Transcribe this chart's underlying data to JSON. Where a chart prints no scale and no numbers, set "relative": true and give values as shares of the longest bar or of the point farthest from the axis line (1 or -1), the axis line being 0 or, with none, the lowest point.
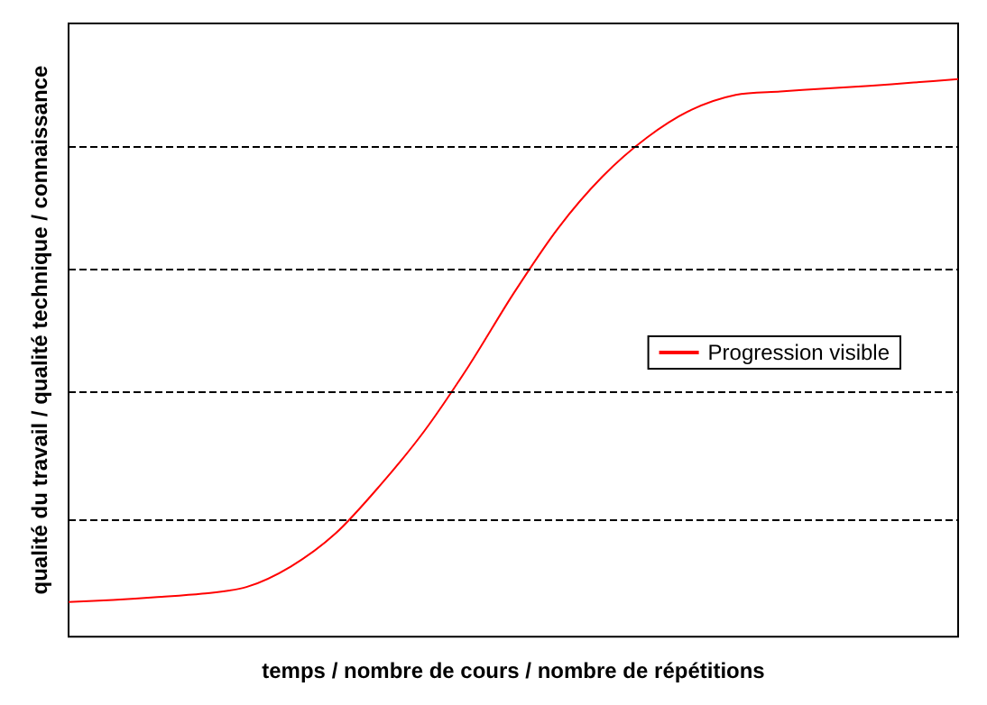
{
  "chart_data": {
    "type": "line",
    "relative": true,
    "xlabel": "temps / nombre de cours / nombre de répétitions",
    "ylabel": "qualité du travail / qualité technique / connaissance",
    "categories": [
      null,
      null,
      null,
      null,
      null,
      null,
      null,
      null,
      null,
      null,
      null,
      null,
      null,
      null,
      null,
      null,
      null,
      null,
      null,
      null,
      null
    ],
    "series": [
      {
        "name": "Progression visible",
        "color": "#ff0000",
        "values": [
          0.062,
          0.066,
          0.071,
          0.077,
          0.089,
          0.126,
          0.185,
          0.271,
          0.369,
          0.486,
          0.615,
          0.732,
          0.825,
          0.895,
          0.945,
          0.972,
          0.978,
          0.983,
          0.988,
          0.994,
          1
        ]
      }
    ],
    "ref_lines": [
      {
        "axis": "y",
        "value": 0.209,
        "color": "#000000",
        "line_style": "dashed"
      },
      {
        "axis": "y",
        "value": 0.44,
        "color": "#000000",
        "line_style": "dashed"
      },
      {
        "axis": "y",
        "value": 0.662,
        "color": "#000000",
        "line_style": "dashed"
      },
      {
        "axis": "y",
        "value": 0.883,
        "color": "#000000",
        "line_style": "dashed"
      }
    ],
    "legend": "right",
    "marker": "none",
    "line_style": "solid",
    "grid": false
  }
}
